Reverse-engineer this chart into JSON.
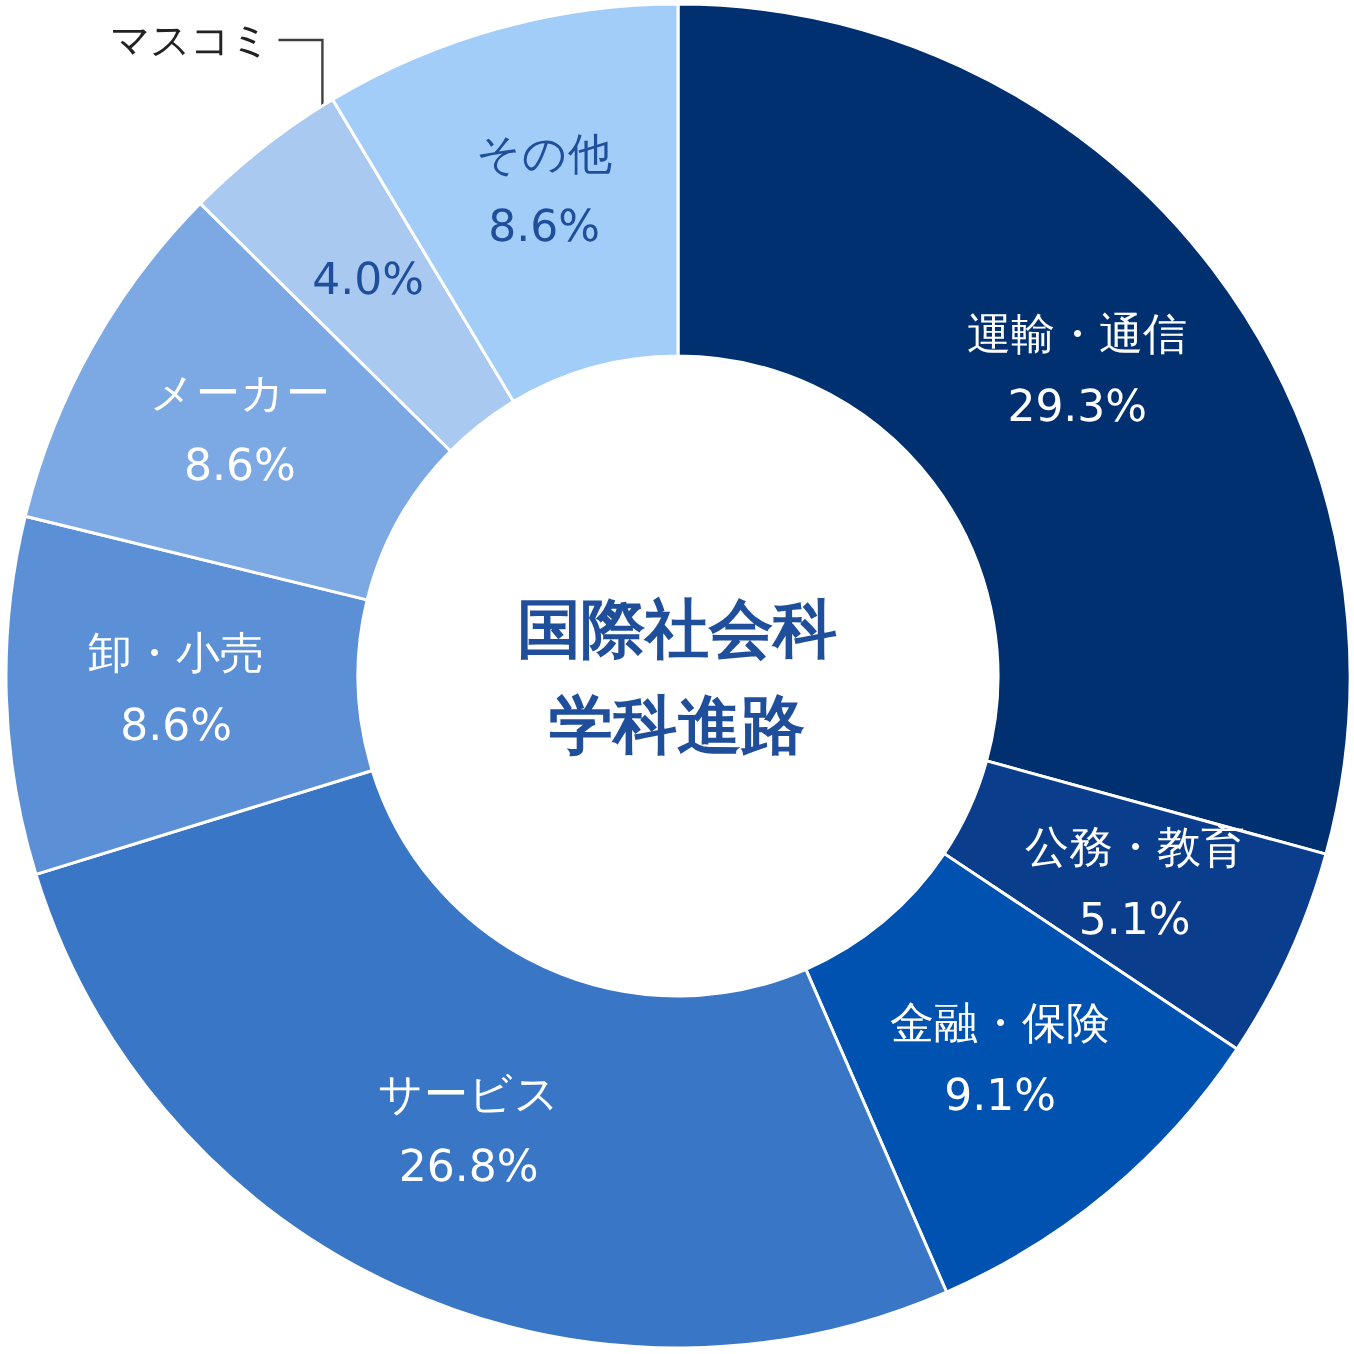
{
  "chart_data": {
    "type": "donut",
    "title": "国際社会科学科進路",
    "categories": [
      "運輸・通信",
      "公務・教育",
      "金融・保険",
      "サービス",
      "卸・小売",
      "メーカー",
      "マスコミ",
      "その他"
    ],
    "values": [
      29.3,
      5.1,
      9.1,
      26.8,
      8.6,
      8.6,
      4.0,
      8.6
    ],
    "colors": [
      "#003070",
      "#0a3d8c",
      "#0052b0",
      "#3a76c6",
      "#5b8fd6",
      "#7ca9e4",
      "#a9c9f0",
      "#a3cdf9"
    ],
    "value_labels": [
      "29.3%",
      "5.1%",
      "9.1%",
      "26.8%",
      "8.6%",
      "8.6%",
      "4.0%",
      "8.6%"
    ],
    "legend": false
  }
}
